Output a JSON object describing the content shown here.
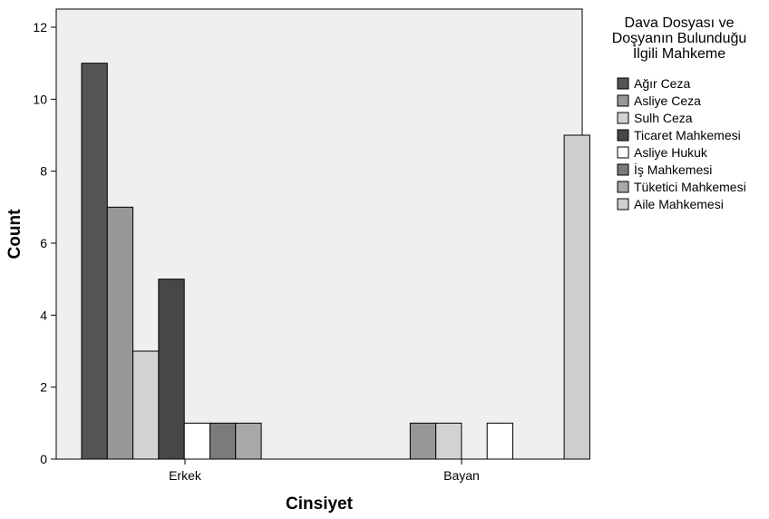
{
  "chart_data": {
    "type": "bar",
    "xlabel": "Cinsiyet",
    "ylabel": "Count",
    "ylim": [
      0,
      12
    ],
    "yticks": [
      0,
      2,
      4,
      6,
      8,
      10,
      12
    ],
    "grid": false,
    "legend_placement": "right",
    "legend_title": [
      "Dava Dosyası ve",
      "Doşyanın Bulunduğu",
      "İlgili Mahkeme"
    ],
    "categories": [
      "Erkek",
      "Bayan"
    ],
    "series": [
      {
        "name": "Ağır Ceza",
        "color": "#555555",
        "values": [
          11,
          0
        ]
      },
      {
        "name": "Asliye Ceza",
        "color": "#979797",
        "values": [
          7,
          1
        ]
      },
      {
        "name": "Sulh Ceza",
        "color": "#d2d2d2",
        "values": [
          3,
          1
        ]
      },
      {
        "name": "Ticaret Mahkemesi",
        "color": "#474747",
        "values": [
          5,
          0
        ]
      },
      {
        "name": "Asliye Hukuk",
        "color": "#ffffff",
        "values": [
          1,
          1
        ]
      },
      {
        "name": "İş Mahkemesi",
        "color": "#7b7b7b",
        "values": [
          1,
          0
        ]
      },
      {
        "name": "Tüketici Mahkemesi",
        "color": "#a8a8a8",
        "values": [
          1,
          0
        ]
      },
      {
        "name": "Aile Mahkemesi",
        "color": "#cecece",
        "values": [
          0,
          9
        ]
      }
    ],
    "plot_background": "#efefef"
  }
}
